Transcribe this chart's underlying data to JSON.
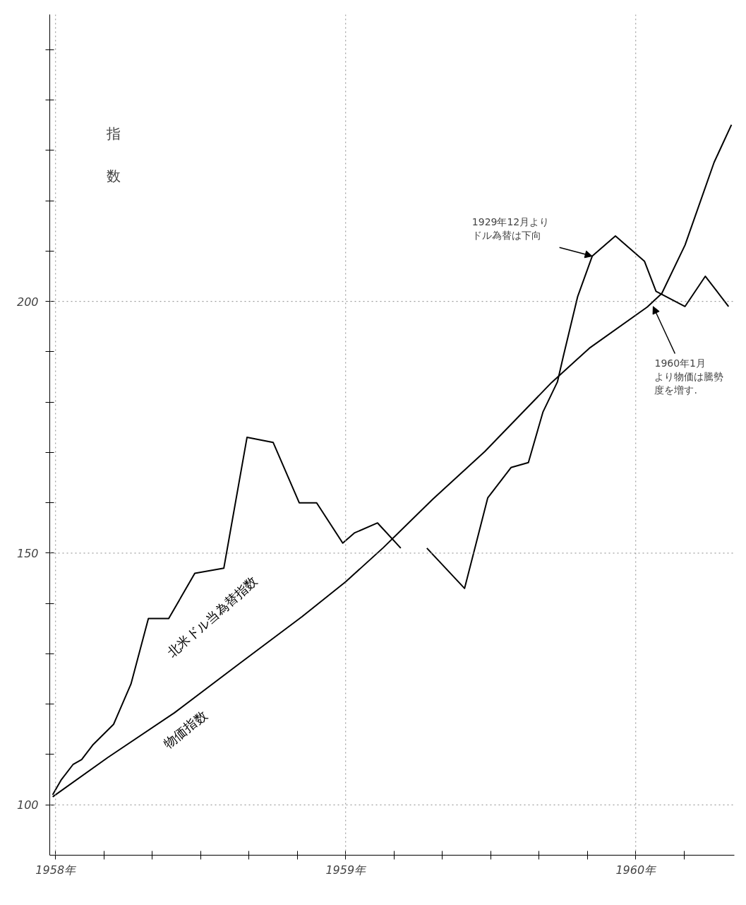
{
  "chart_data": {
    "type": "line",
    "ylabel": "指数",
    "xlim": [
      1957.98,
      1960.34
    ],
    "ylim": [
      90,
      257
    ],
    "xticks": [
      {
        "value": 1958,
        "label": "1958年"
      },
      {
        "value": 1958.167,
        "label": null
      },
      {
        "value": 1958.333,
        "label": null
      },
      {
        "value": 1958.5,
        "label": null
      },
      {
        "value": 1958.667,
        "label": null
      },
      {
        "value": 1958.833,
        "label": null
      },
      {
        "value": 1959,
        "label": "1959年"
      },
      {
        "value": 1959.167,
        "label": null
      },
      {
        "value": 1959.333,
        "label": null
      },
      {
        "value": 1959.5,
        "label": null
      },
      {
        "value": 1959.667,
        "label": null
      },
      {
        "value": 1959.833,
        "label": null
      },
      {
        "value": 1960,
        "label": "1960年"
      },
      {
        "value": 1960.167,
        "label": null
      }
    ],
    "yticks": [
      {
        "value": 100,
        "label": "100"
      },
      {
        "value": 110,
        "label": null
      },
      {
        "value": 120,
        "label": null
      },
      {
        "value": 130,
        "label": null
      },
      {
        "value": 140,
        "label": null
      },
      {
        "value": 150,
        "label": "150"
      },
      {
        "value": 160,
        "label": null
      },
      {
        "value": 170,
        "label": null
      },
      {
        "value": 180,
        "label": null
      },
      {
        "value": 190,
        "label": null
      },
      {
        "value": 200,
        "label": "200"
      },
      {
        "value": 210,
        "label": null
      },
      {
        "value": 220,
        "label": null
      },
      {
        "value": 230,
        "label": null
      },
      {
        "value": 240,
        "label": null
      },
      {
        "value": 250,
        "label": null
      }
    ],
    "grid": true,
    "series": [
      {
        "name": "北米ドル当為替指数",
        "color": "#000000",
        "x": [
          1957.99,
          1958.02,
          1958.06,
          1958.09,
          1958.13,
          1958.2,
          1958.26,
          1958.32,
          1958.39,
          1958.48,
          1958.58,
          1958.66,
          1958.75,
          1958.84,
          1958.9,
          1958.99,
          1959.03,
          1959.11,
          1959.19,
          1959.25,
          1959.28,
          1959.41,
          1959.49,
          1959.57,
          1959.63,
          1959.68,
          1959.73,
          1959.75,
          1959.8,
          1959.85,
          1959.93,
          1960.03,
          1960.07,
          1960.17,
          1960.24,
          1960.32
        ],
        "values": [
          102,
          105,
          108,
          109,
          112,
          116,
          124,
          137,
          137,
          146,
          147,
          173,
          172,
          160,
          160,
          152,
          154,
          156,
          151,
          null,
          151,
          143,
          161,
          167,
          168,
          178,
          184,
          189,
          201,
          209,
          213,
          208,
          202,
          199,
          205,
          199
        ]
      },
      {
        "name": "物価指数",
        "color": "#000000",
        "x": [
          1957.99,
          1958.18,
          1958.41,
          1958.63,
          1958.85,
          1959.0,
          1959.13,
          1959.3,
          1959.48,
          1959.71,
          1959.84,
          1960.04,
          1960.09,
          1960.17,
          1960.27,
          1960.33
        ],
        "values": [
          101.6,
          109.4,
          118.3,
          127.9,
          137.4,
          144.3,
          151.1,
          160.7,
          170.2,
          183.9,
          190.7,
          198.9,
          201.6,
          211.2,
          227.6,
          235.1
        ]
      }
    ],
    "annotations": [
      {
        "text": "1929年12月よりドル為替は下向",
        "x": 1959.85,
        "y": 209
      },
      {
        "text": "1960年1月より物価は騰勢度を増す.",
        "x": 1960.06,
        "y": 199
      }
    ]
  }
}
